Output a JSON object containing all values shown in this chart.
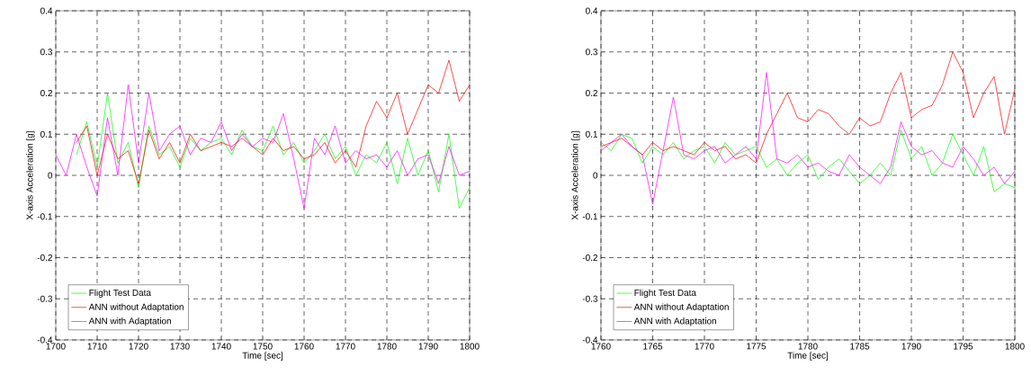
{
  "chart_data": [
    {
      "type": "line",
      "xlabel": "Time [sec]",
      "ylabel": "X-axis Acceleration [g]",
      "xlim": [
        1700,
        1800
      ],
      "xticks": [
        1700,
        1710,
        1720,
        1730,
        1740,
        1750,
        1760,
        1770,
        1780,
        1790,
        1800
      ],
      "ylim": [
        -0.4,
        0.4
      ],
      "yticks": [
        -0.4,
        -0.3,
        -0.2,
        -0.1,
        0,
        0.1,
        0.2,
        0.3,
        0.4
      ],
      "grid": true,
      "legend": "bottom left",
      "x": [
        1700,
        1702.5,
        1705,
        1707.5,
        1710,
        1712.5,
        1715,
        1717.5,
        1720,
        1722.5,
        1725,
        1727.5,
        1730,
        1732.5,
        1735,
        1737.5,
        1740,
        1742.5,
        1745,
        1747.5,
        1750,
        1752.5,
        1755,
        1757.5,
        1760,
        1762.5,
        1765,
        1767.5,
        1770,
        1772.5,
        1775,
        1777.5,
        1780,
        1782.5,
        1785,
        1787.5,
        1790,
        1792.5,
        1795,
        1797.5,
        1800
      ],
      "series": [
        {
          "name": "Flight Test Data",
          "color": "#00ff00",
          "values": [
            null,
            null,
            0.05,
            0.13,
            0.02,
            0.2,
            0.03,
            0.08,
            -0.03,
            0.12,
            0.05,
            0.07,
            0.02,
            0.09,
            0.06,
            0.08,
            0.09,
            0.05,
            0.11,
            0.07,
            0.06,
            0.12,
            0.05,
            0.08,
            0.03,
            0.06,
            0.1,
            0.04,
            0.07,
            0.0,
            0.05,
            0.03,
            0.08,
            -0.02,
            0.09,
            0.0,
            0.06,
            -0.04,
            0.1,
            -0.08,
            -0.03
          ]
        },
        {
          "name": "ANN without Adaptation",
          "color": "#ff0000",
          "values": [
            null,
            null,
            0.08,
            0.12,
            0.0,
            0.1,
            0.04,
            0.06,
            -0.02,
            0.11,
            0.04,
            0.08,
            0.03,
            0.1,
            0.06,
            0.07,
            0.08,
            0.07,
            0.09,
            0.07,
            0.05,
            0.09,
            0.06,
            0.07,
            0.04,
            0.05,
            0.08,
            0.03,
            0.06,
            0.02,
            0.12,
            0.18,
            0.14,
            0.2,
            0.1,
            0.16,
            0.22,
            0.2,
            0.28,
            0.18,
            0.22
          ]
        },
        {
          "name": "ANN with Adaptation",
          "color": "#ff00ff",
          "values": [
            0.05,
            0.0,
            0.1,
            0.02,
            -0.05,
            0.14,
            0.0,
            0.22,
            0.03,
            0.2,
            0.06,
            0.1,
            0.12,
            0.05,
            0.09,
            0.08,
            0.13,
            0.06,
            0.1,
            0.07,
            0.09,
            0.08,
            0.15,
            0.04,
            -0.08,
            0.09,
            0.05,
            0.12,
            0.03,
            0.06,
            0.04,
            0.05,
            0.02,
            0.06,
            0.0,
            0.04,
            0.05,
            -0.02,
            0.07,
            0.0,
            0.01
          ]
        }
      ]
    },
    {
      "type": "line",
      "xlabel": "Time [sec]",
      "ylabel": "X-axis Acceleration [g]",
      "xlim": [
        1760,
        1800
      ],
      "xticks": [
        1760,
        1765,
        1770,
        1775,
        1780,
        1785,
        1790,
        1795,
        1800
      ],
      "ylim": [
        -0.4,
        0.4
      ],
      "yticks": [
        -0.4,
        -0.3,
        -0.2,
        -0.1,
        0,
        0.1,
        0.2,
        0.3,
        0.4
      ],
      "grid": true,
      "legend": "bottom left",
      "x": [
        1760,
        1761,
        1762,
        1763,
        1764,
        1765,
        1766,
        1767,
        1768,
        1769,
        1770,
        1771,
        1772,
        1773,
        1774,
        1775,
        1776,
        1777,
        1778,
        1779,
        1780,
        1781,
        1782,
        1783,
        1784,
        1785,
        1786,
        1787,
        1788,
        1789,
        1790,
        1791,
        1792,
        1793,
        1794,
        1795,
        1796,
        1797,
        1798,
        1799,
        1800
      ],
      "series": [
        {
          "name": "Flight Test Data",
          "color": "#00ff00",
          "values": [
            0.08,
            0.06,
            0.1,
            0.09,
            0.03,
            0.07,
            0.05,
            0.08,
            0.04,
            0.06,
            0.07,
            0.03,
            0.08,
            0.05,
            0.06,
            0.07,
            0.02,
            0.04,
            0.0,
            0.03,
            0.05,
            -0.01,
            0.02,
            0.04,
            0.01,
            -0.02,
            0.0,
            0.03,
            0.0,
            0.11,
            0.04,
            0.07,
            0.0,
            0.03,
            0.1,
            0.05,
            0.0,
            0.07,
            -0.04,
            -0.02,
            -0.03
          ]
        },
        {
          "name": "ANN without Adaptation",
          "color": "#ff0000",
          "values": [
            0.07,
            0.08,
            0.09,
            0.07,
            0.05,
            0.08,
            0.06,
            0.07,
            0.06,
            0.05,
            0.08,
            0.06,
            0.07,
            0.04,
            0.05,
            0.03,
            0.1,
            0.15,
            0.2,
            0.14,
            0.13,
            0.16,
            0.15,
            0.12,
            0.1,
            0.14,
            0.12,
            0.13,
            0.2,
            0.25,
            0.14,
            0.16,
            0.17,
            0.22,
            0.3,
            0.25,
            0.14,
            0.2,
            0.24,
            0.1,
            0.21
          ]
        },
        {
          "name": "ANN with Adaptation",
          "color": "#ff00ff",
          "values": [
            0.06,
            0.08,
            0.1,
            0.07,
            0.05,
            -0.07,
            0.06,
            0.19,
            0.05,
            0.04,
            0.06,
            0.07,
            0.03,
            0.05,
            0.07,
            0.04,
            0.25,
            0.04,
            0.03,
            0.05,
            0.02,
            0.03,
            0.01,
            0.0,
            0.05,
            0.02,
            0.0,
            -0.02,
            0.02,
            0.13,
            0.07,
            0.05,
            0.06,
            0.03,
            0.02,
            0.07,
            0.04,
            0.0,
            0.02,
            -0.02,
            0.01
          ]
        }
      ]
    }
  ]
}
